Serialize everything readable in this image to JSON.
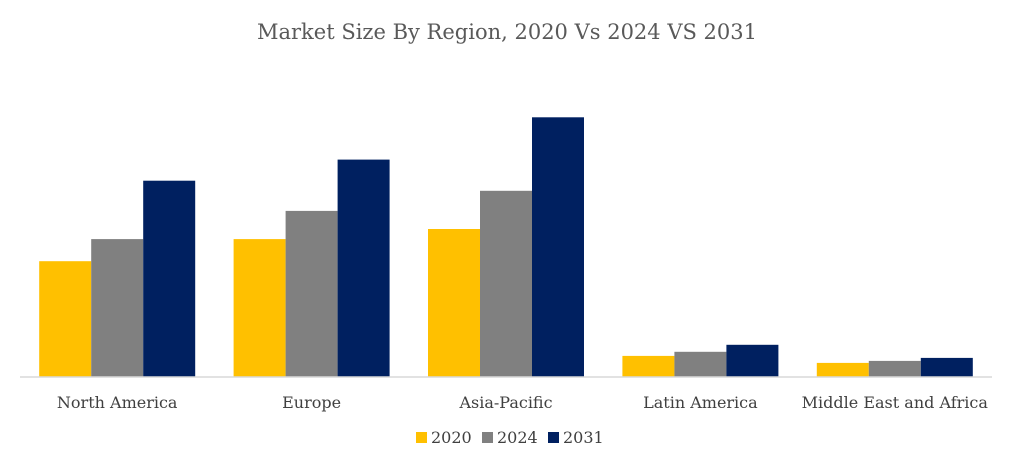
{
  "chart_data": {
    "type": "bar",
    "title": "Market Size By Region, 2020 Vs 2024 VS 2031",
    "xlabel": "",
    "ylabel": "",
    "categories": [
      "North America",
      "Europe",
      "Asia-Pacific",
      "Latin America",
      "Middle East and Africa"
    ],
    "series": [
      {
        "name": "2020",
        "color": "#FFC000",
        "values": [
          115,
          137,
          147,
          21,
          14
        ]
      },
      {
        "name": "2024",
        "color": "#808080",
        "values": [
          137,
          165,
          185,
          25,
          16
        ]
      },
      {
        "name": "2031",
        "color": "#002060",
        "values": [
          195,
          216,
          258,
          32,
          19
        ]
      }
    ],
    "ylim": [
      0,
      300
    ],
    "grid": false,
    "legend": "bottom-center",
    "axis_color": "#D9D9D9"
  }
}
